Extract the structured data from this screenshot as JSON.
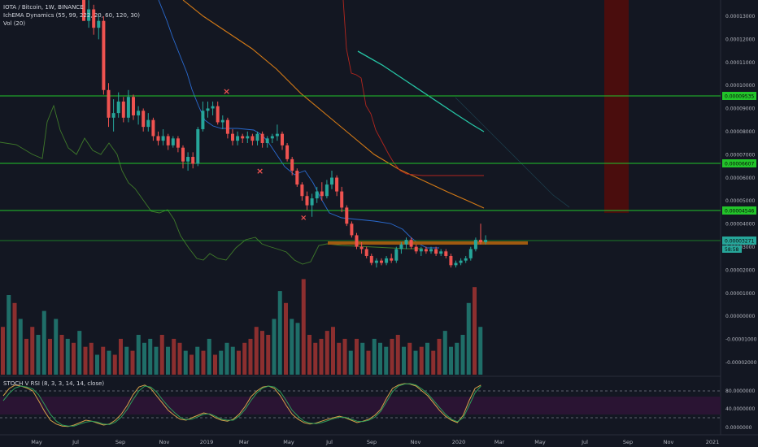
{
  "header": {
    "symbol": "IOTA / Bitcoin, 1W, BINANCE",
    "indicator": "IchEMA Dynamics (55, 99, 222, 20, 60, 120, 30)",
    "volume": "Vol (20)"
  },
  "stoch_label": "STOCH V RSI (8, 3, 3, 14, 14, close)",
  "colors": {
    "background": "#131722",
    "up": "#26a69a",
    "down": "#ef5350",
    "green_line": "#22c52a",
    "orange": "#ff9800",
    "support_box": "#a05a10",
    "red_zone": "#4a0d0d"
  },
  "price_axis": {
    "ticks": [
      "0.00013000",
      "0.00012000",
      "0.00011000",
      "0.00010000",
      "0.00009000",
      "0.00008000",
      "0.00007000",
      "0.00006000",
      "0.00005000",
      "0.00004000",
      "0.00003000",
      "0.00002000",
      "0.00001000",
      "0.00000000",
      "-0.00001000",
      "-0.00002000"
    ],
    "labels": [
      "0.00009535",
      "0.00006607",
      "0.00004546",
      "0.00003271"
    ],
    "current_sub": "58:58"
  },
  "stoch_axis": {
    "ticks": [
      "80.0000000",
      "40.0000000",
      "0.0000000"
    ]
  },
  "time_axis": {
    "labels": [
      "May",
      "Jul",
      "Sep",
      "Nov",
      "2019",
      "Mar",
      "May",
      "Jul",
      "Sep",
      "Nov",
      "2020",
      "Mar",
      "May",
      "Jul",
      "Sep",
      "Nov",
      "2021"
    ]
  },
  "chart_data": {
    "type": "candlestick",
    "candles": [
      [
        0.00014,
        0.00014,
        0.000128,
        0.000128
      ],
      [
        0.000128,
        0.000137,
        0.000125,
        0.000133
      ],
      [
        0.000133,
        0.000135,
        0.000122,
        0.000125
      ],
      [
        0.000125,
        0.000131,
        0.00012,
        0.000128
      ],
      [
        0.000128,
        0.00013,
        9.6e-05,
        9.8e-05
      ],
      [
        9.8e-05,
        0.000101,
        8.2e-05,
        8.6e-05
      ],
      [
        8.6e-05,
        9.4e-05,
        8e-05,
        8.8e-05
      ],
      [
        8.8e-05,
        9.7e-05,
        8.6e-05,
        9.3e-05
      ],
      [
        9.3e-05,
        9.5e-05,
        8.4e-05,
        8.6e-05
      ],
      [
        8.6e-05,
        9.8e-05,
        8.4e-05,
        9.5e-05
      ],
      [
        9.5e-05,
        9.6e-05,
        8.5e-05,
        8.7e-05
      ],
      [
        8.7e-05,
        9.1e-05,
        8.3e-05,
        8.9e-05
      ],
      [
        8.9e-05,
        9e-05,
        8e-05,
        8.2e-05
      ],
      [
        8.2e-05,
        8.8e-05,
        8e-05,
        8.5e-05
      ],
      [
        8.5e-05,
        8.6e-05,
        7.6e-05,
        7.8e-05
      ],
      [
        7.8e-05,
        8e-05,
        7.4e-05,
        7.6e-05
      ],
      [
        7.6e-05,
        8.1e-05,
        7.4e-05,
        7.8e-05
      ],
      [
        7.8e-05,
        7.9e-05,
        7.2e-05,
        7.4e-05
      ],
      [
        7.4e-05,
        7.8e-05,
        7.3e-05,
        7.7e-05
      ],
      [
        7.7e-05,
        7.8e-05,
        7.1e-05,
        7.3e-05
      ],
      [
        7.3e-05,
        7.4e-05,
        6.4e-05,
        6.7e-05
      ],
      [
        6.7e-05,
        7.1e-05,
        6.3e-05,
        6.9e-05
      ],
      [
        6.9e-05,
        7.1e-05,
        6.4e-05,
        6.6e-05
      ],
      [
        6.6e-05,
        8.2e-05,
        6.5e-05,
        8.1e-05
      ],
      [
        8.1e-05,
        9.3e-05,
        8e-05,
        8.9e-05
      ],
      [
        8.9e-05,
        9.3e-05,
        8.6e-05,
        9e-05
      ],
      [
        9e-05,
        9.3e-05,
        8.7e-05,
        9.1e-05
      ],
      [
        9.1e-05,
        9.3e-05,
        8.3e-05,
        8.4e-05
      ],
      [
        8.4e-05,
        8.7e-05,
        8.1e-05,
        8.5e-05
      ],
      [
        8.5e-05,
        8.6e-05,
        7.7e-05,
        7.9e-05
      ],
      [
        7.9e-05,
        8.1e-05,
        7.4e-05,
        7.6e-05
      ],
      [
        7.6e-05,
        8e-05,
        7.4e-05,
        7.8e-05
      ],
      [
        7.8e-05,
        7.9e-05,
        7.5e-05,
        7.7e-05
      ],
      [
        7.7e-05,
        8e-05,
        7.5e-05,
        7.8e-05
      ],
      [
        7.8e-05,
        7.9e-05,
        7.4e-05,
        7.6e-05
      ],
      [
        7.6e-05,
        8e-05,
        7.4e-05,
        7.9e-05
      ],
      [
        7.9e-05,
        8e-05,
        7.3e-05,
        7.5e-05
      ],
      [
        7.5e-05,
        7.8e-05,
        7.3e-05,
        7.7e-05
      ],
      [
        7.7e-05,
        7.9e-05,
        7.5e-05,
        7.8e-05
      ],
      [
        7.8e-05,
        8.3e-05,
        7.6e-05,
        7.9e-05
      ],
      [
        7.9e-05,
        8e-05,
        7.2e-05,
        7.4e-05
      ],
      [
        7.4e-05,
        7.5e-05,
        6.7e-05,
        6.8e-05
      ],
      [
        6.8e-05,
        6.9e-05,
        6.1e-05,
        6.3e-05
      ],
      [
        6.3e-05,
        6.4e-05,
        5.6e-05,
        5.7e-05
      ],
      [
        5.7e-05,
        5.8e-05,
        5e-05,
        5.2e-05
      ],
      [
        5.2e-05,
        5.4e-05,
        4.6e-05,
        4.8e-05
      ],
      [
        4.8e-05,
        5.3e-05,
        4.3e-05,
        5.1e-05
      ],
      [
        5.1e-05,
        5.6e-05,
        4.9e-05,
        5.4e-05
      ],
      [
        5.4e-05,
        5.8e-05,
        5e-05,
        5.2e-05
      ],
      [
        5.2e-05,
        5.9e-05,
        5.1e-05,
        5.7e-05
      ],
      [
        5.7e-05,
        6.3e-05,
        5.5e-05,
        6e-05
      ],
      [
        6e-05,
        6.1e-05,
        5.2e-05,
        5.4e-05
      ],
      [
        5.4e-05,
        5.6e-05,
        4.5e-05,
        4.7e-05
      ],
      [
        4.7e-05,
        4.8e-05,
        3.9e-05,
        4e-05
      ],
      [
        4e-05,
        4.1e-05,
        3.4e-05,
        3.5e-05
      ],
      [
        3.5e-05,
        3.6e-05,
        2.9e-05,
        3e-05
      ],
      [
        3e-05,
        3.2e-05,
        2.7e-05,
        2.9e-05
      ],
      [
        2.9e-05,
        3e-05,
        2.5e-05,
        2.6e-05
      ],
      [
        2.6e-05,
        2.7e-05,
        2.2e-05,
        2.3e-05
      ],
      [
        2.3e-05,
        2.5e-05,
        2.1e-05,
        2.4e-05
      ],
      [
        2.4e-05,
        2.5e-05,
        2.2e-05,
        2.3e-05
      ],
      [
        2.3e-05,
        2.6e-05,
        2.2e-05,
        2.5e-05
      ],
      [
        2.5e-05,
        2.7e-05,
        2.3e-05,
        2.4e-05
      ],
      [
        2.4e-05,
        3e-05,
        2.3e-05,
        2.9e-05
      ],
      [
        2.9e-05,
        3.2e-05,
        2.7e-05,
        3.1e-05
      ],
      [
        3.1e-05,
        3.4e-05,
        2.9e-05,
        3.3e-05
      ],
      [
        3.3e-05,
        3.4e-05,
        2.9e-05,
        3e-05
      ],
      [
        3e-05,
        3.1e-05,
        2.7e-05,
        2.8e-05
      ],
      [
        2.8e-05,
        3e-05,
        2.6e-05,
        2.9e-05
      ],
      [
        2.9e-05,
        3e-05,
        2.7e-05,
        2.8e-05
      ],
      [
        2.8e-05,
        3e-05,
        2.7e-05,
        2.9e-05
      ],
      [
        2.9e-05,
        3e-05,
        2.6e-05,
        2.7e-05
      ],
      [
        2.7e-05,
        2.9e-05,
        2.6e-05,
        2.8e-05
      ],
      [
        2.8e-05,
        2.9e-05,
        2.5e-05,
        2.6e-05
      ],
      [
        2.6e-05,
        2.7e-05,
        2.1e-05,
        2.2e-05
      ],
      [
        2.2e-05,
        2.4e-05,
        2.1e-05,
        2.3e-05
      ],
      [
        2.3e-05,
        2.5e-05,
        2.2e-05,
        2.4e-05
      ],
      [
        2.4e-05,
        2.6e-05,
        2.3e-05,
        2.5e-05
      ],
      [
        2.5e-05,
        3e-05,
        2.4e-05,
        2.9e-05
      ],
      [
        2.9e-05,
        3.4e-05,
        2.8e-05,
        3.3e-05
      ],
      [
        3.3e-05,
        4e-05,
        3.1e-05,
        3.2e-05
      ],
      [
        3.2e-05,
        3.5e-05,
        3.1e-05,
        3.3e-05
      ]
    ],
    "volume": [
      12,
      20,
      18,
      14,
      9,
      12,
      10,
      16,
      9,
      14,
      10,
      9,
      8,
      11,
      7,
      8,
      5,
      7,
      6,
      5,
      9,
      7,
      6,
      10,
      8,
      9,
      7,
      10,
      7,
      9,
      8,
      6,
      5,
      7,
      6,
      9,
      5,
      6,
      8,
      7,
      6,
      8,
      9,
      12,
      11,
      10,
      14,
      21,
      18,
      14,
      13,
      24,
      10,
      8,
      9,
      11,
      12,
      8,
      9,
      6,
      9,
      8,
      6,
      9,
      8,
      7,
      9,
      10,
      7,
      8,
      6,
      7,
      8,
      6,
      9,
      11,
      7,
      8,
      10,
      18,
      22,
      12
    ],
    "stoch_k": [
      70,
      85,
      92,
      90,
      86,
      80,
      60,
      38,
      20,
      12,
      8,
      7,
      10,
      15,
      20,
      18,
      14,
      10,
      12,
      20,
      32,
      50,
      72,
      88,
      92,
      85,
      70,
      55,
      40,
      30,
      22,
      20,
      25,
      30,
      35,
      32,
      25,
      20,
      18,
      22,
      32,
      48,
      68,
      80,
      88,
      90,
      85,
      70,
      50,
      32,
      22,
      15,
      12,
      14,
      18,
      22,
      25,
      28,
      25,
      20,
      15,
      18,
      22,
      30,
      42,
      65,
      85,
      92,
      95,
      94,
      90,
      80,
      70,
      55,
      40,
      28,
      20,
      15,
      30,
      60,
      85,
      92
    ],
    "stoch_d": [
      60,
      75,
      86,
      90,
      88,
      84,
      72,
      52,
      32,
      18,
      10,
      8,
      8,
      12,
      16,
      18,
      16,
      12,
      11,
      16,
      26,
      42,
      62,
      80,
      90,
      88,
      78,
      62,
      48,
      36,
      26,
      21,
      22,
      27,
      32,
      33,
      28,
      22,
      20,
      20,
      28,
      42,
      60,
      76,
      86,
      90,
      88,
      78,
      60,
      40,
      28,
      18,
      14,
      13,
      15,
      19,
      23,
      26,
      26,
      22,
      18,
      17,
      20,
      26,
      38,
      58,
      78,
      90,
      94,
      95,
      92,
      84,
      74,
      60,
      46,
      32,
      22,
      17,
      25,
      50,
      76,
      90
    ]
  }
}
